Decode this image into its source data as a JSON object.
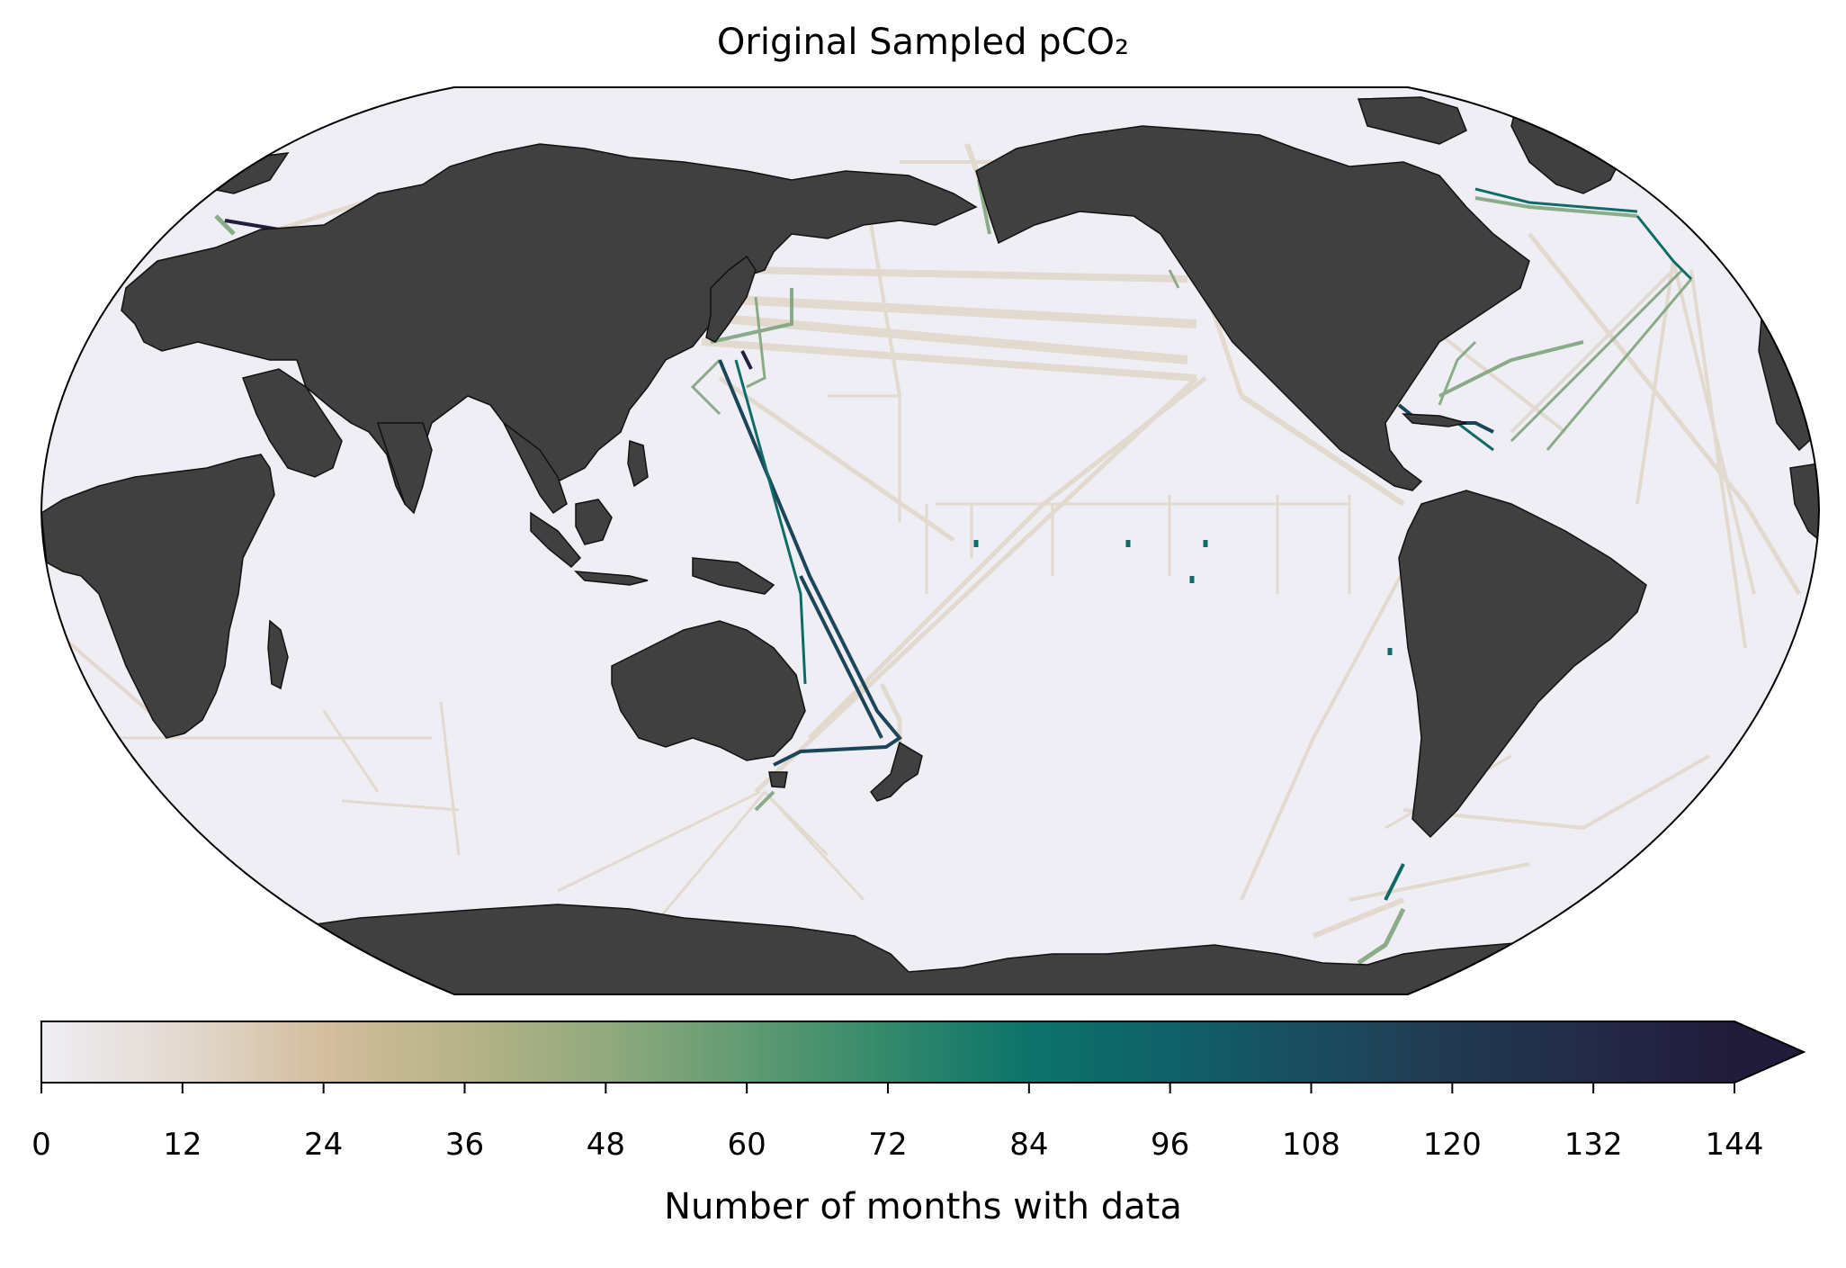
{
  "title": "Original Sampled pCO₂",
  "colorbar": {
    "label": "Number of months with data",
    "min": 0,
    "max": 144,
    "extend": "max",
    "ticks": [
      "0",
      "12",
      "24",
      "36",
      "48",
      "60",
      "72",
      "84",
      "96",
      "108",
      "120",
      "132",
      "144"
    ],
    "colors": [
      "#efeef4",
      "#d8c8b2",
      "#c7b28f",
      "#a9b283",
      "#7fa47c",
      "#4d9472",
      "#2a7f6a",
      "#0e6b66",
      "#145a63",
      "#1c4559",
      "#21324c",
      "#211f3c"
    ]
  },
  "map": {
    "projection": "Robinson",
    "central_longitude": "Pacific",
    "land_color": "#404040",
    "ocean_color": "#efeef4"
  }
}
